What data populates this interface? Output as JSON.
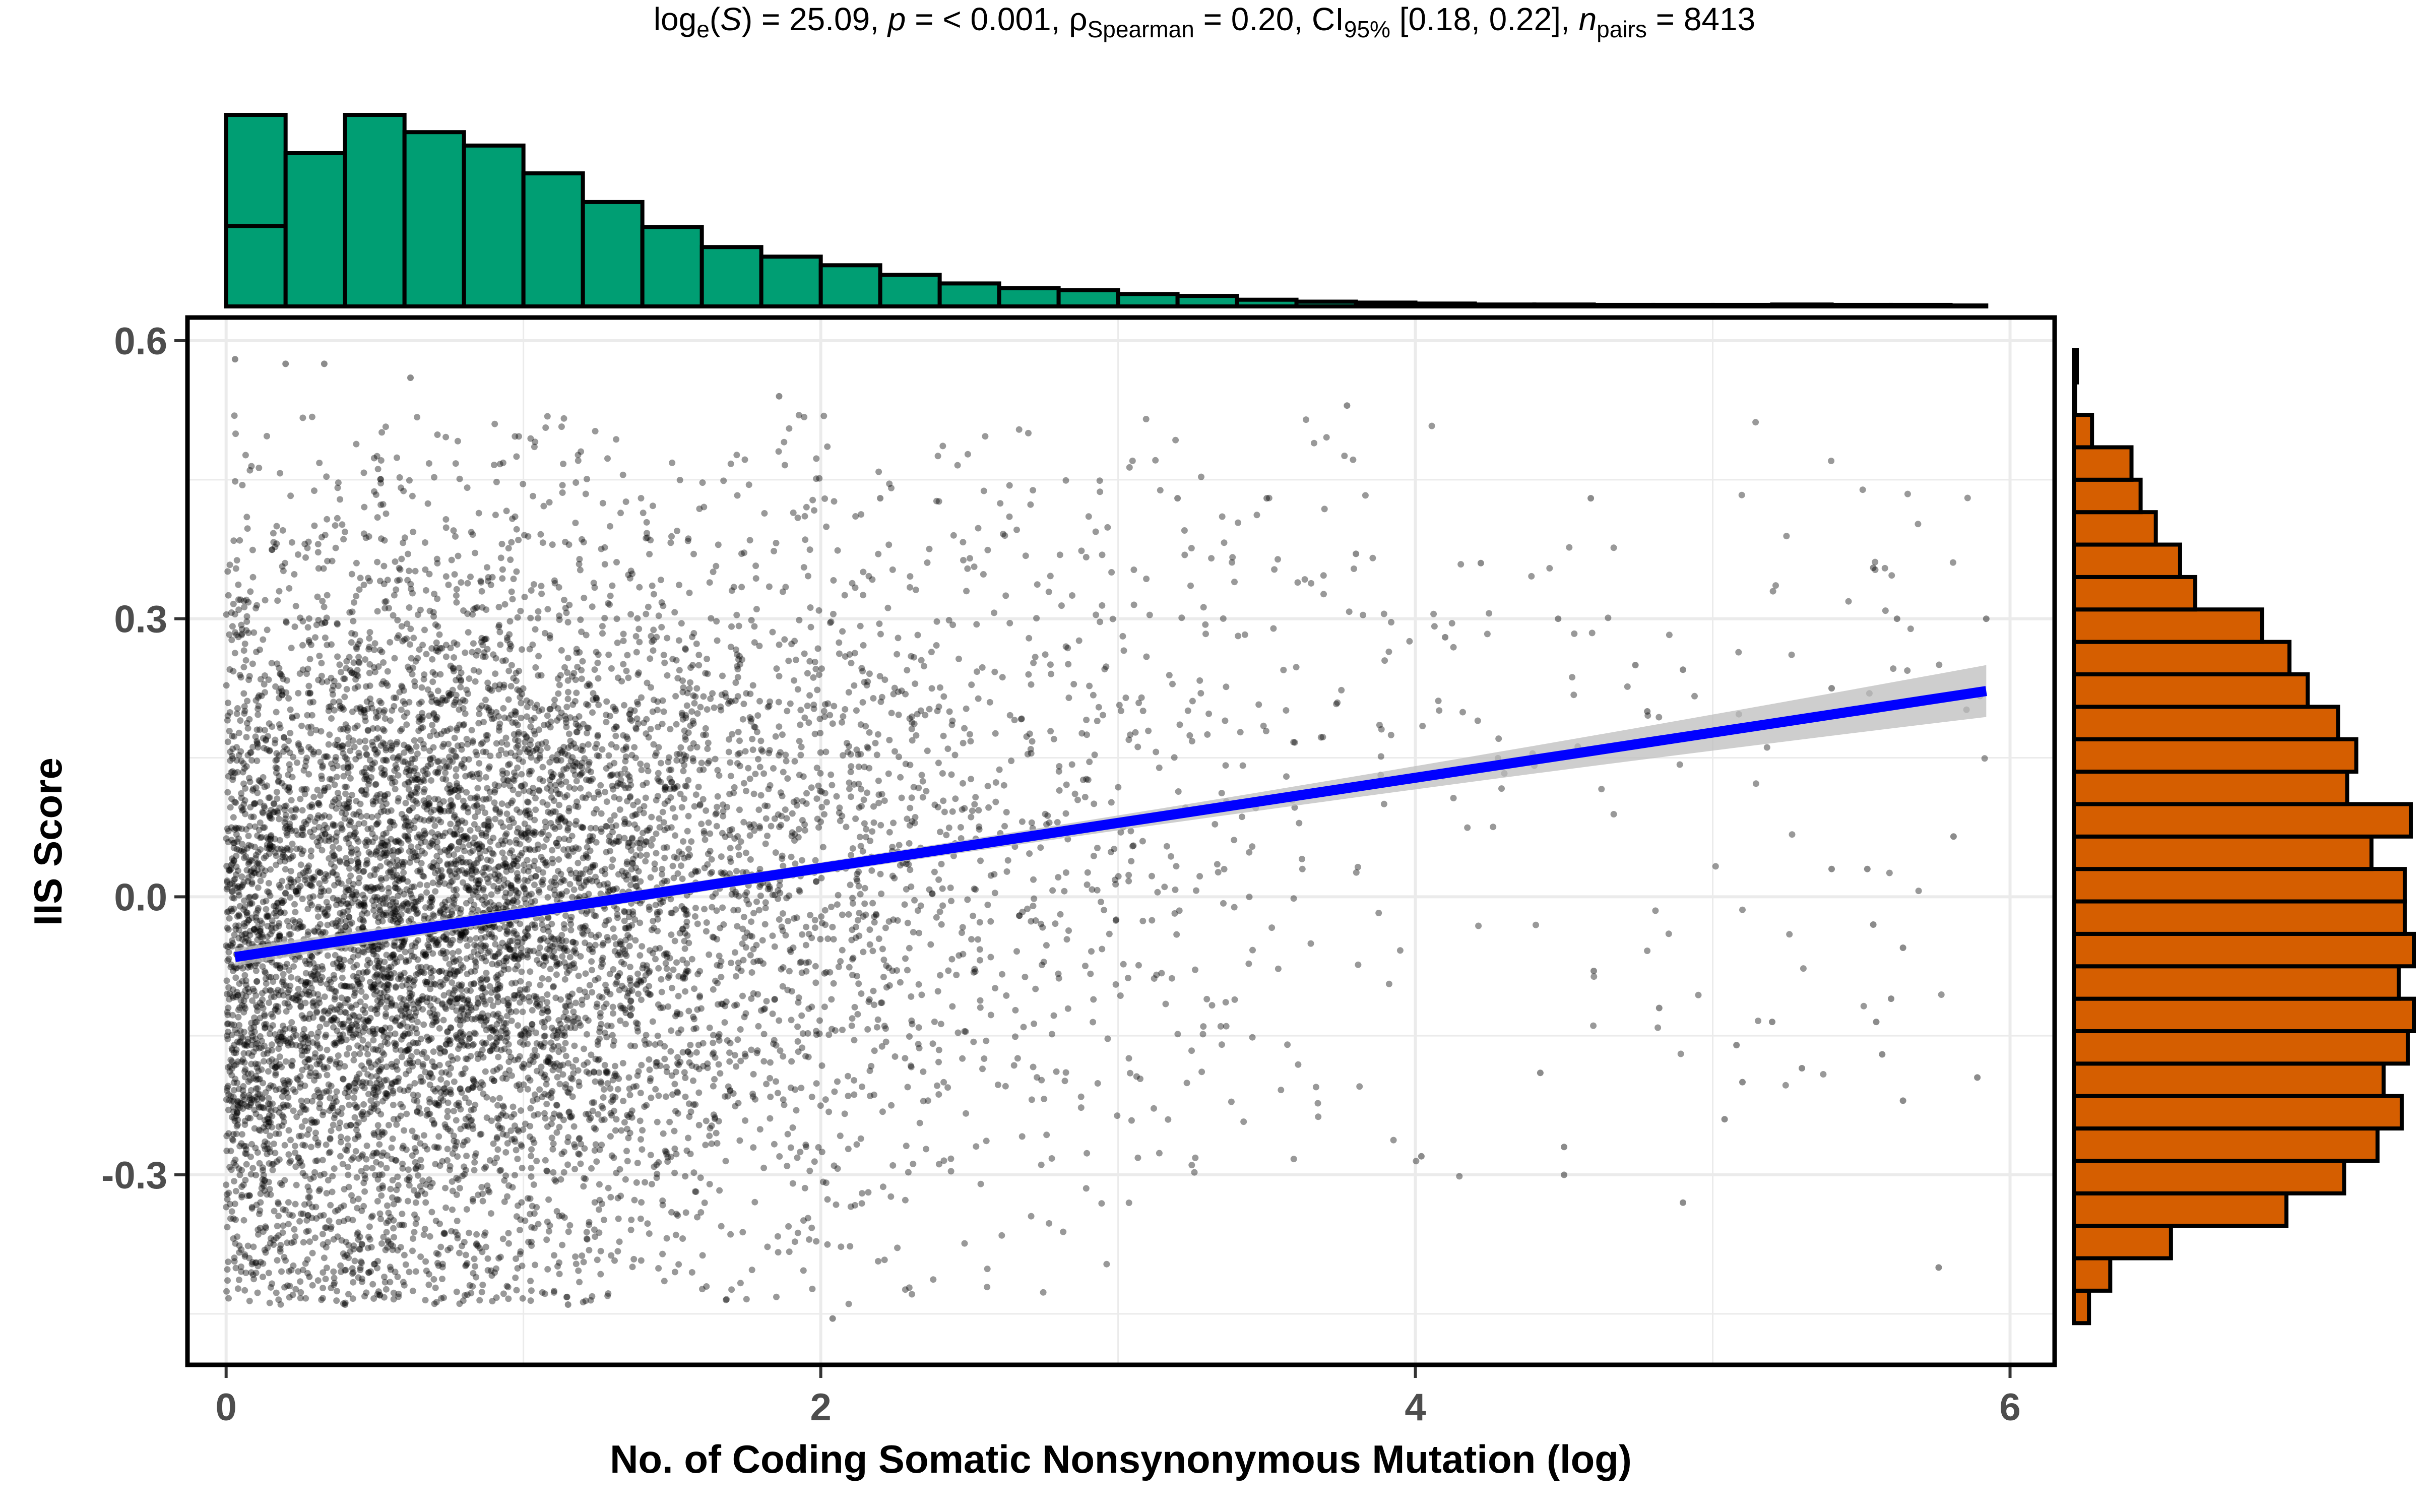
{
  "subtitle": {
    "stat_prefix": "log",
    "stat_prefix_sub": "e",
    "stat_symbol": "S",
    "stat_value": " = 25.09, ",
    "p_label": "p",
    "p_value": " = < 0.001, ",
    "rho_label": "ρ",
    "rho_sub": "Spearman",
    "rho_value": " = 0.20, ",
    "ci_label": "CI",
    "ci_sub": "95%",
    "ci_value": " [0.18, 0.22], ",
    "n_label": "n",
    "n_sub": "pairs",
    "n_value": " = 8413"
  },
  "colors": {
    "top_histogram_fill": "#009E73",
    "right_histogram_fill": "#D55E00",
    "point_color": "#000000",
    "fit_line_color": "#0000FF",
    "confidence_band_color": "#BEBEBE",
    "grid_color": "#EBEBEB"
  },
  "chart_data": {
    "type": "scatter",
    "xlabel": "No. of Coding Somatic Nonsynonymous Mutation (log)",
    "ylabel": "IIS Score",
    "xlim": [
      -0.13,
      6.15
    ],
    "ylim": [
      -0.505,
      0.625
    ],
    "x_ticks": [
      0,
      2,
      4,
      6
    ],
    "x_tick_labels": [
      "0",
      "2",
      "4",
      "6"
    ],
    "y_ticks": [
      -0.3,
      0.0,
      0.3,
      0.6
    ],
    "y_tick_labels": [
      "-0.3",
      "0.0",
      "0.3",
      "0.6"
    ],
    "grid": true,
    "n_points": 8413,
    "points_note_sampled": false,
    "regression": {
      "x_start": 0.03,
      "y_start": -0.065,
      "x_end": 5.92,
      "y_end": 0.222,
      "ci_halfwidth_at_end": 0.028,
      "ci_halfwidth_at_start": 0.006
    },
    "outlier_points": [
      [
        0.03,
        0.58
      ],
      [
        0.2,
        0.575
      ],
      [
        0.33,
        0.575
      ],
      [
        0.62,
        0.56
      ],
      [
        1.86,
        0.54
      ],
      [
        3.77,
        0.53
      ],
      [
        2.2,
        0.43
      ],
      [
        3.2,
        0.43
      ],
      [
        3.5,
        0.43
      ],
      [
        4.59,
        0.43
      ],
      [
        3.8,
        0.37
      ],
      [
        4.22,
        0.36
      ],
      [
        5.54,
        0.355
      ],
      [
        5.92,
        0.3
      ],
      [
        5.62,
        0.3
      ],
      [
        4.48,
        0.3
      ],
      [
        4.1,
        0.28
      ],
      [
        4.9,
        0.245
      ],
      [
        4.74,
        0.25
      ],
      [
        4.78,
        0.2
      ],
      [
        5.4,
        0.225
      ],
      [
        5.81,
        0.065
      ],
      [
        5.4,
        0.03
      ],
      [
        5.52,
        0.03
      ],
      [
        5.54,
        -0.03
      ],
      [
        5.64,
        -0.055
      ],
      [
        5.6,
        -0.11
      ],
      [
        4.6,
        -0.08
      ],
      [
        4.82,
        -0.12
      ],
      [
        5.2,
        -0.135
      ],
      [
        5.08,
        -0.16
      ],
      [
        5.55,
        -0.135
      ],
      [
        5.1,
        -0.2
      ],
      [
        5.57,
        -0.17
      ],
      [
        5.89,
        -0.195
      ],
      [
        5.3,
        -0.185
      ],
      [
        5.04,
        -0.24
      ],
      [
        4.5,
        -0.27
      ],
      [
        4.42,
        -0.19
      ],
      [
        5.64,
        -0.22
      ],
      [
        4.5,
        -0.3
      ],
      [
        4.02,
        -0.28
      ],
      [
        4.9,
        -0.33
      ],
      [
        5.76,
        -0.4
      ],
      [
        2.04,
        -0.455
      ],
      [
        0.28,
        -0.41
      ],
      [
        0.4,
        -0.44
      ],
      [
        1.15,
        -0.44
      ]
    ],
    "top_histogram": {
      "bin_edges": [
        0.0,
        0.2,
        0.4,
        0.6,
        0.8,
        1.0,
        1.2,
        1.4,
        1.6,
        1.8,
        2.0,
        2.2,
        2.4,
        2.6,
        2.8,
        3.0,
        3.2,
        3.4,
        3.6,
        3.8,
        4.0,
        4.2,
        4.4,
        4.6,
        4.8,
        5.0,
        5.2,
        5.4,
        5.6,
        5.8,
        5.92
      ],
      "counts": [
        1000,
        800,
        1000,
        910,
        840,
        695,
        545,
        415,
        310,
        260,
        215,
        165,
        120,
        95,
        85,
        65,
        55,
        35,
        25,
        20,
        15,
        10,
        10,
        8,
        8,
        8,
        10,
        8,
        8,
        5
      ],
      "inner_step_count": 420
    },
    "right_histogram": {
      "bin_edges": [
        -0.46,
        -0.425,
        -0.39,
        -0.355,
        -0.32,
        -0.285,
        -0.25,
        -0.215,
        -0.18,
        -0.145,
        -0.11,
        -0.075,
        -0.04,
        -0.005,
        0.03,
        0.065,
        0.1,
        0.135,
        0.17,
        0.205,
        0.24,
        0.275,
        0.31,
        0.345,
        0.38,
        0.415,
        0.45,
        0.485,
        0.52,
        0.555,
        0.59
      ],
      "counts": [
        25,
        60,
        160,
        350,
        445,
        500,
        540,
        510,
        550,
        560,
        535,
        560,
        545,
        545,
        490,
        555,
        450,
        465,
        435,
        385,
        355,
        310,
        200,
        175,
        135,
        110,
        95,
        30,
        2,
        5
      ]
    }
  }
}
